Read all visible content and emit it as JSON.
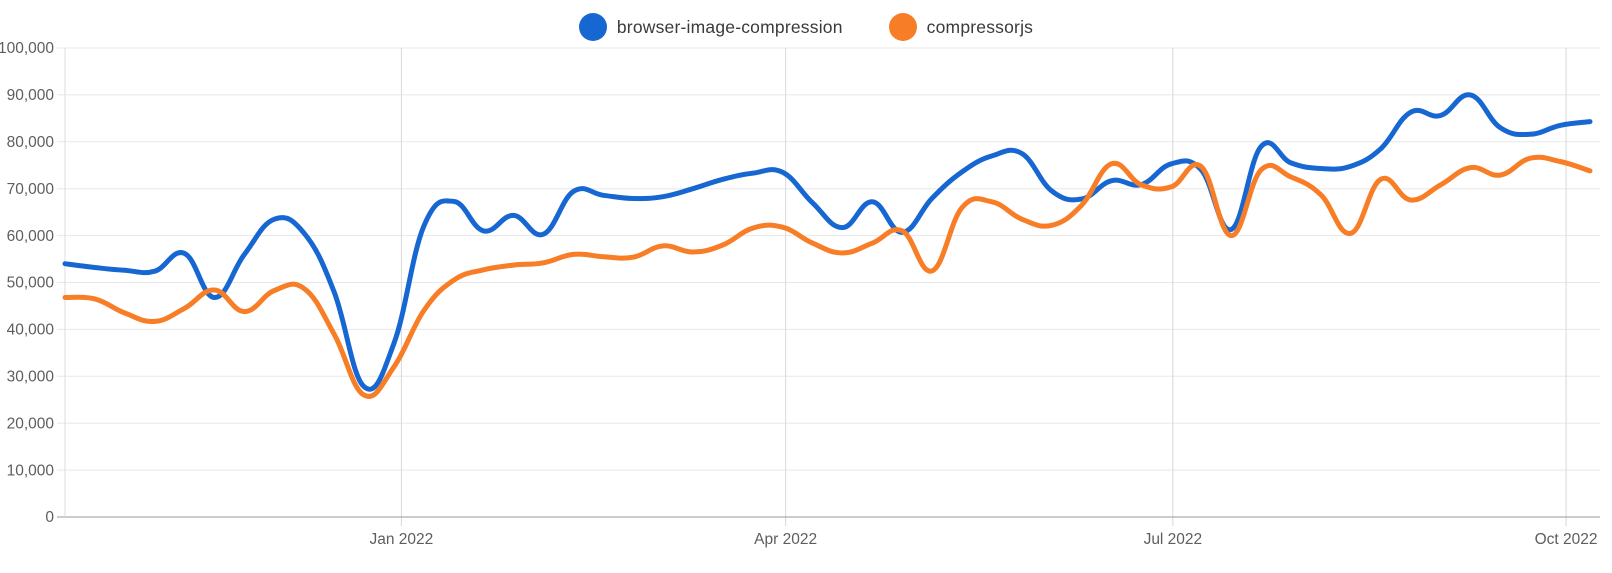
{
  "legend": {
    "items": [
      {
        "label": "browser-image-compression",
        "color": "#1767d2"
      },
      {
        "label": "compressorjs",
        "color": "#f77e26"
      }
    ]
  },
  "chart_data": {
    "type": "line",
    "title": "",
    "xlabel": "",
    "ylabel": "",
    "ylim": [
      0,
      100000
    ],
    "grid": true,
    "legend_position": "top",
    "x_unit": "week",
    "x_tick_labels": [
      "Jan 2022",
      "Apr 2022",
      "Jul 2022",
      "Oct 2022"
    ],
    "x_tick_indices": [
      11.25,
      24.1,
      37.05,
      50.2
    ],
    "y_tick_values": [
      0,
      10000,
      20000,
      30000,
      40000,
      50000,
      60000,
      70000,
      80000,
      90000,
      100000
    ],
    "y_tick_labels": [
      "0",
      "10,000",
      "20,000",
      "30,000",
      "40,000",
      "50,000",
      "60,000",
      "70,000",
      "80,000",
      "90,000",
      "100,000"
    ],
    "series": [
      {
        "name": "browser-image-compression",
        "color": "#1767d2",
        "values": [
          54000,
          53200,
          52600,
          52400,
          56200,
          46800,
          56000,
          63500,
          60500,
          48000,
          27800,
          37000,
          62000,
          67300,
          61000,
          64300,
          60300,
          69400,
          68600,
          67900,
          68300,
          70000,
          72000,
          73300,
          73500,
          67000,
          61700,
          67200,
          60700,
          68000,
          73600,
          77000,
          77500,
          69500,
          67800,
          71700,
          70900,
          75300,
          74000,
          61300,
          79000,
          75500,
          74300,
          74800,
          78500,
          86300,
          85600,
          90000,
          83000,
          81600,
          83500,
          84300
        ]
      },
      {
        "name": "compressorjs",
        "color": "#f77e26",
        "values": [
          46800,
          46500,
          43500,
          41700,
          44500,
          48400,
          43800,
          48300,
          48700,
          39000,
          26000,
          32000,
          44000,
          50500,
          52700,
          53700,
          54200,
          56000,
          55500,
          55400,
          57800,
          56500,
          58000,
          61600,
          61800,
          58400,
          56300,
          58400,
          61000,
          52500,
          66000,
          67200,
          63500,
          62200,
          66500,
          75300,
          70800,
          70400,
          74700,
          60000,
          74000,
          72500,
          68700,
          60500,
          72000,
          67600,
          70800,
          74500,
          72900,
          76500,
          75800,
          73800
        ]
      }
    ],
    "style": {
      "grid_color": "#e8e8e8",
      "month_line_color": "#d8d8d8",
      "axis_line_color": "#999999",
      "left_border_color": "#dddddd",
      "tick_label_color": "#5e5e5e",
      "line_width": 5
    }
  }
}
